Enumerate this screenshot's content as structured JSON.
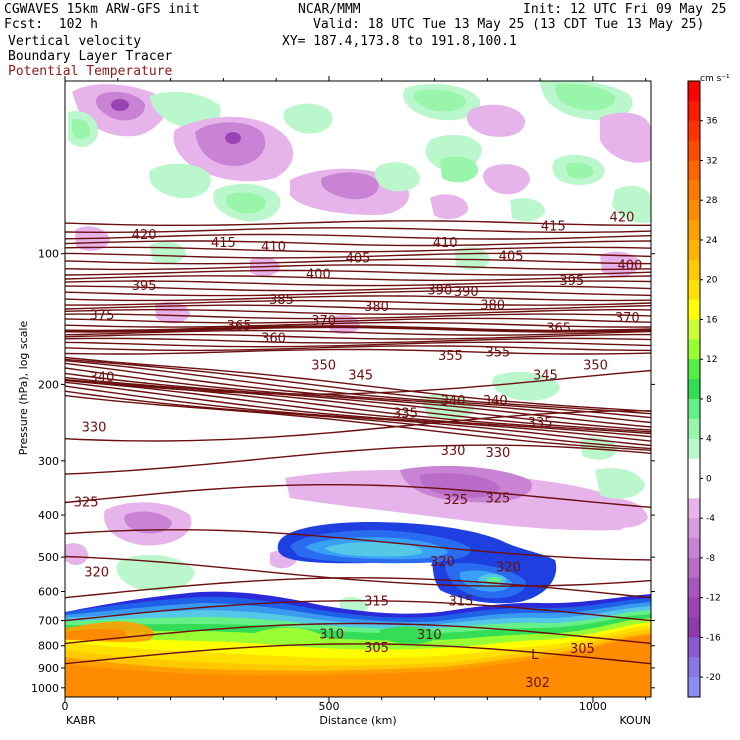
{
  "header": {
    "line1_left": "CGWAVES 15km ARW-GFS init",
    "line1_center": "NCAR/MMM",
    "line1_right": "Init: 12 UTC Fri 09 May 25",
    "line2_left": "Fcst:  102 h",
    "line2_right": "Valid: 18 UTC Tue 13 May 25 (13 CDT Tue 13 May 25)",
    "line3_left": "Vertical velocity",
    "line3_right": "XY= 187.4,173.8 to 191.8,100.1",
    "line4_left": "Boundary Layer Tracer",
    "line5_left": "Potential Temperature"
  },
  "colors": {
    "theta_line": "#6b0f0f",
    "theta_title": "#8b1a1a"
  },
  "chart_data": {
    "type": "heatmap",
    "title": "Vertical velocity",
    "xlabel": "Distance (km)",
    "ylabel": "Pressure (hPa), log scale",
    "x_ticks": [
      "0",
      "500",
      "1000"
    ],
    "x_tick_values": [
      0,
      500,
      1000
    ],
    "xlim": [
      0,
      1110
    ],
    "y_ticks": [
      "100",
      "200",
      "300",
      "400",
      "500",
      "600",
      "700",
      "800",
      "900",
      "1000"
    ],
    "y_tick_values": [
      100,
      200,
      300,
      400,
      500,
      600,
      700,
      800,
      900,
      1000
    ],
    "ylim": [
      40,
      1050
    ],
    "endpoints": {
      "left": "KABR",
      "right": "KOUN"
    },
    "colorbar": {
      "unit": "cm s⁻¹",
      "labels": [
        "36",
        "32",
        "28",
        "24",
        "20",
        "16",
        "12",
        "8",
        "4",
        "0",
        "-4",
        "-8",
        "-12",
        "-16",
        "-20"
      ],
      "label_values": [
        36,
        32,
        28,
        24,
        20,
        16,
        12,
        8,
        4,
        0,
        -4,
        -8,
        -12,
        -16,
        -20
      ],
      "levels": [
        40,
        38,
        36,
        34,
        32,
        30,
        28,
        26,
        24,
        22,
        20,
        18,
        16,
        14,
        12,
        10,
        8,
        6,
        4,
        2,
        0,
        -2,
        -4,
        -6,
        -8,
        -10,
        -12,
        -14,
        -16,
        -18,
        -20,
        -22
      ],
      "colors": [
        "#ff0000",
        "#ff1a00",
        "#ff3300",
        "#ff4d00",
        "#ff6600",
        "#ff7a00",
        "#ff8c00",
        "#ffa000",
        "#ffb400",
        "#ffc800",
        "#ffe000",
        "#ffff00",
        "#ccff33",
        "#99ff33",
        "#55ee44",
        "#33dd55",
        "#66f088",
        "#99f5aa",
        "#bbf7cc",
        "#ffffff",
        "#ffffff",
        "#e6b3ea",
        "#d99be0",
        "#c983d4",
        "#b86cc8",
        "#a855bc",
        "#9a44b3",
        "#8e3aad",
        "#8a5bd0",
        "#8a78e0",
        "#8c8ff0"
      ]
    },
    "theta_contours": {
      "name": "Potential Temperature",
      "units": "K",
      "labels": [
        {
          "text": "420",
          "x": 150,
          "p": 90
        },
        {
          "text": "415",
          "x": 300,
          "p": 94
        },
        {
          "text": "410",
          "x": 395,
          "p": 96
        },
        {
          "text": "410",
          "x": 720,
          "p": 94
        },
        {
          "text": "415",
          "x": 925,
          "p": 86
        },
        {
          "text": "420",
          "x": 1055,
          "p": 82
        },
        {
          "text": "405",
          "x": 555,
          "p": 102
        },
        {
          "text": "405",
          "x": 845,
          "p": 101
        },
        {
          "text": "400",
          "x": 480,
          "p": 111
        },
        {
          "text": "400",
          "x": 1070,
          "p": 106
        },
        {
          "text": "395",
          "x": 150,
          "p": 118
        },
        {
          "text": "395",
          "x": 960,
          "p": 115
        },
        {
          "text": "390",
          "x": 760,
          "p": 122
        },
        {
          "text": "390",
          "x": 710,
          "p": 121
        },
        {
          "text": "385",
          "x": 410,
          "p": 127
        },
        {
          "text": "380",
          "x": 590,
          "p": 132
        },
        {
          "text": "380",
          "x": 810,
          "p": 131
        },
        {
          "text": "375",
          "x": 70,
          "p": 138
        },
        {
          "text": "370",
          "x": 490,
          "p": 142
        },
        {
          "text": "370",
          "x": 1065,
          "p": 140
        },
        {
          "text": "365",
          "x": 330,
          "p": 146
        },
        {
          "text": "365",
          "x": 935,
          "p": 148
        },
        {
          "text": "360",
          "x": 395,
          "p": 156
        },
        {
          "text": "355",
          "x": 730,
          "p": 171
        },
        {
          "text": "355",
          "x": 820,
          "p": 168
        },
        {
          "text": "350",
          "x": 490,
          "p": 180
        },
        {
          "text": "350",
          "x": 1005,
          "p": 180
        },
        {
          "text": "345",
          "x": 560,
          "p": 190
        },
        {
          "text": "345",
          "x": 910,
          "p": 190
        },
        {
          "text": "340",
          "x": 70,
          "p": 192
        },
        {
          "text": "340",
          "x": 735,
          "p": 217
        },
        {
          "text": "340",
          "x": 815,
          "p": 217
        },
        {
          "text": "335",
          "x": 645,
          "p": 232
        },
        {
          "text": "335",
          "x": 900,
          "p": 244
        },
        {
          "text": "330",
          "x": 55,
          "p": 250
        },
        {
          "text": "330",
          "x": 735,
          "p": 283
        },
        {
          "text": "330",
          "x": 820,
          "p": 286
        },
        {
          "text": "325",
          "x": 40,
          "p": 372
        },
        {
          "text": "325",
          "x": 740,
          "p": 367
        },
        {
          "text": "325",
          "x": 820,
          "p": 364
        },
        {
          "text": "320",
          "x": 60,
          "p": 540
        },
        {
          "text": "320",
          "x": 715,
          "p": 510
        },
        {
          "text": "320",
          "x": 840,
          "p": 525
        },
        {
          "text": "315",
          "x": 590,
          "p": 630
        },
        {
          "text": "315",
          "x": 750,
          "p": 630
        },
        {
          "text": "310",
          "x": 505,
          "p": 750
        },
        {
          "text": "310",
          "x": 690,
          "p": 752
        },
        {
          "text": "305",
          "x": 590,
          "p": 805
        },
        {
          "text": "305",
          "x": 980,
          "p": 810
        },
        {
          "text": "302",
          "x": 895,
          "p": 970
        },
        {
          "text": "L",
          "x": 890,
          "p": 835
        }
      ]
    }
  }
}
